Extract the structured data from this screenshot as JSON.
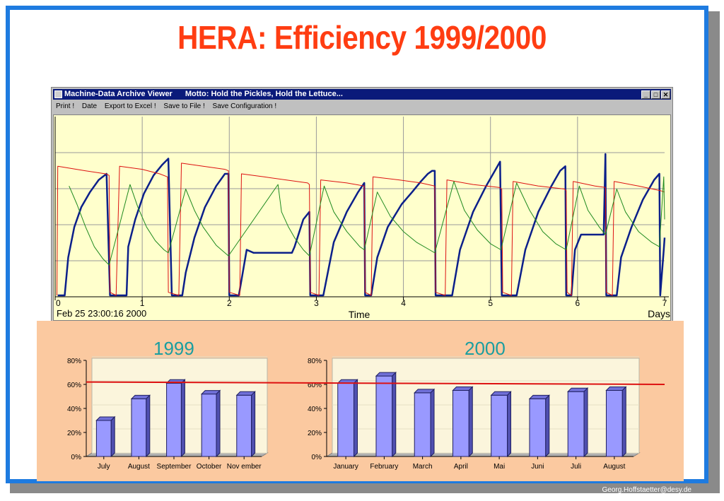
{
  "title": "HERA: Efficiency 1999/2000",
  "window": {
    "title": "Machine-Data Archive Viewer",
    "motto": "Motto: Hold the Pickles, Hold the Lettuce...",
    "buttons": [
      "_",
      "□",
      "✕"
    ],
    "menu": [
      "Print !",
      "Date",
      "Export to Excel !",
      "Save to File !",
      "Save Configuration !"
    ]
  },
  "colors": {
    "frame": "#1e7be0",
    "title": "#ff3d12",
    "panel_bg": "#fbc9a0",
    "bar_fill": "#9999ff",
    "target_line": "#dd1111",
    "year_title": "#1a9ea0",
    "plot_bg": "#ffffcc",
    "efficiency_curve": "#0b1f8a",
    "current_red": "#dd1111",
    "current_green": "#1f8a1f"
  },
  "footer": "Georg.Hoffstaetter@desy.de",
  "chart_data": [
    {
      "type": "line",
      "xlabel": "Time",
      "x_unit": "Days",
      "start_label": "Feb 25 23:00:16 2000",
      "xlim": [
        0,
        7
      ],
      "xticks": [
        "0",
        "1",
        "2",
        "3",
        "4",
        "5",
        "6",
        "7"
      ],
      "grid": true,
      "series": [
        {
          "color": "#0b1f8a",
          "points": [
            [
              0.03,
              0.0
            ],
            [
              0.05,
              0.0
            ],
            [
              0.11,
              0.0
            ],
            [
              0.15,
              0.25
            ],
            [
              0.22,
              0.45
            ],
            [
              0.3,
              0.58
            ],
            [
              0.4,
              0.68
            ],
            [
              0.5,
              0.76
            ],
            [
              0.59,
              0.8
            ],
            [
              0.63,
              0.0
            ],
            [
              0.72,
              0.0
            ],
            [
              0.76,
              0.0
            ],
            [
              0.82,
              0.0
            ],
            [
              0.84,
              0.32
            ],
            [
              0.92,
              0.5
            ],
            [
              1.02,
              0.67
            ],
            [
              1.13,
              0.79
            ],
            [
              1.23,
              0.86
            ],
            [
              1.3,
              0.9
            ],
            [
              1.34,
              0.0
            ],
            [
              1.46,
              0.0
            ],
            [
              1.5,
              0.15
            ],
            [
              1.6,
              0.38
            ],
            [
              1.72,
              0.58
            ],
            [
              1.85,
              0.72
            ],
            [
              1.95,
              0.8
            ],
            [
              1.99,
              0.8
            ],
            [
              2.0,
              0.0
            ],
            [
              2.11,
              0.0
            ],
            [
              2.2,
              0.3
            ],
            [
              2.28,
              0.28
            ],
            [
              2.34,
              0.28
            ],
            [
              2.45,
              0.28
            ],
            [
              2.65,
              0.28
            ],
            [
              2.72,
              0.28
            ],
            [
              2.75,
              0.32
            ],
            [
              2.85,
              0.5
            ],
            [
              2.92,
              0.55
            ],
            [
              2.93,
              0.0
            ],
            [
              3.02,
              0.0
            ],
            [
              3.08,
              0.0
            ],
            [
              3.2,
              0.35
            ],
            [
              3.35,
              0.55
            ],
            [
              3.48,
              0.68
            ],
            [
              3.55,
              0.74
            ],
            [
              3.56,
              0.0
            ],
            [
              3.63,
              0.0
            ],
            [
              3.7,
              0.25
            ],
            [
              3.82,
              0.45
            ],
            [
              3.98,
              0.6
            ],
            [
              4.1,
              0.68
            ],
            [
              4.2,
              0.75
            ],
            [
              4.28,
              0.8
            ],
            [
              4.33,
              0.82
            ],
            [
              4.36,
              0.82
            ],
            [
              4.37,
              0.0
            ],
            [
              4.5,
              0.0
            ],
            [
              4.56,
              0.0
            ],
            [
              4.65,
              0.3
            ],
            [
              4.8,
              0.55
            ],
            [
              4.95,
              0.72
            ],
            [
              5.05,
              0.82
            ],
            [
              5.11,
              0.88
            ],
            [
              5.13,
              0.0
            ],
            [
              5.22,
              0.0
            ],
            [
              5.3,
              0.0
            ],
            [
              5.4,
              0.3
            ],
            [
              5.55,
              0.55
            ],
            [
              5.7,
              0.72
            ],
            [
              5.8,
              0.82
            ],
            [
              5.86,
              0.85
            ],
            [
              5.87,
              0.0
            ],
            [
              5.93,
              0.0
            ],
            [
              5.97,
              0.3
            ],
            [
              6.04,
              0.4
            ],
            [
              6.2,
              0.4
            ],
            [
              6.3,
              0.4
            ],
            [
              6.32,
              0.93
            ],
            [
              6.33,
              0.0
            ],
            [
              6.4,
              0.0
            ],
            [
              6.45,
              0.0
            ],
            [
              6.5,
              0.25
            ],
            [
              6.62,
              0.45
            ],
            [
              6.75,
              0.63
            ],
            [
              6.88,
              0.76
            ],
            [
              6.94,
              0.8
            ],
            [
              6.95,
              0.0
            ],
            [
              6.99,
              0.3
            ],
            [
              7.0,
              0.38
            ]
          ]
        },
        {
          "color": "#dd1111",
          "points": [
            [
              0.02,
              0.0
            ],
            [
              0.03,
              0.85
            ],
            [
              0.35,
              0.82
            ],
            [
              0.58,
              0.8
            ],
            [
              0.62,
              0.79
            ],
            [
              0.63,
              0.02
            ],
            [
              0.7,
              0.0
            ],
            [
              0.74,
              0.85
            ],
            [
              1.0,
              0.83
            ],
            [
              1.2,
              0.8
            ],
            [
              1.29,
              0.78
            ],
            [
              1.3,
              0.02
            ],
            [
              1.42,
              0.0
            ],
            [
              1.45,
              0.87
            ],
            [
              1.7,
              0.85
            ],
            [
              1.95,
              0.83
            ],
            [
              1.99,
              0.82
            ],
            [
              2.0,
              0.02
            ],
            [
              2.12,
              0.0
            ],
            [
              2.14,
              0.8
            ],
            [
              2.4,
              0.78
            ],
            [
              2.65,
              0.76
            ],
            [
              2.9,
              0.74
            ],
            [
              2.92,
              0.73
            ],
            [
              2.93,
              0.02
            ],
            [
              3.03,
              0.0
            ],
            [
              3.05,
              0.76
            ],
            [
              3.35,
              0.74
            ],
            [
              3.55,
              0.72
            ],
            [
              3.56,
              0.02
            ],
            [
              3.63,
              0.0
            ],
            [
              3.65,
              0.78
            ],
            [
              3.95,
              0.76
            ],
            [
              4.2,
              0.74
            ],
            [
              4.36,
              0.72
            ],
            [
              4.37,
              0.02
            ],
            [
              4.48,
              0.0
            ],
            [
              4.5,
              0.76
            ],
            [
              4.8,
              0.73
            ],
            [
              5.1,
              0.71
            ],
            [
              5.13,
              0.7
            ],
            [
              5.14,
              0.02
            ],
            [
              5.24,
              0.0
            ],
            [
              5.26,
              0.75
            ],
            [
              5.55,
              0.72
            ],
            [
              5.85,
              0.7
            ],
            [
              5.87,
              0.69
            ],
            [
              5.88,
              0.02
            ],
            [
              5.93,
              0.0
            ],
            [
              5.95,
              0.75
            ],
            [
              6.2,
              0.72
            ],
            [
              6.32,
              0.71
            ],
            [
              6.33,
              0.02
            ],
            [
              6.4,
              0.0
            ],
            [
              6.42,
              0.75
            ],
            [
              6.7,
              0.72
            ],
            [
              6.95,
              0.69
            ],
            [
              7.0,
              0.68
            ]
          ]
        },
        {
          "color": "#1f8a1f",
          "points": [
            [
              0.16,
              0.72
            ],
            [
              0.25,
              0.6
            ],
            [
              0.35,
              0.45
            ],
            [
              0.45,
              0.32
            ],
            [
              0.55,
              0.24
            ],
            [
              0.62,
              0.2
            ],
            [
              0.86,
              0.73
            ],
            [
              0.95,
              0.58
            ],
            [
              1.05,
              0.45
            ],
            [
              1.15,
              0.36
            ],
            [
              1.25,
              0.3
            ],
            [
              1.3,
              0.28
            ],
            [
              1.5,
              0.7
            ],
            [
              1.6,
              0.56
            ],
            [
              1.7,
              0.45
            ],
            [
              1.85,
              0.33
            ],
            [
              1.99,
              0.26
            ],
            [
              2.56,
              0.73
            ],
            [
              2.6,
              0.55
            ],
            [
              2.68,
              0.45
            ],
            [
              2.75,
              0.38
            ],
            [
              2.85,
              0.3
            ],
            [
              2.92,
              0.26
            ],
            [
              3.09,
              0.72
            ],
            [
              3.2,
              0.55
            ],
            [
              3.35,
              0.42
            ],
            [
              3.5,
              0.32
            ],
            [
              3.55,
              0.3
            ],
            [
              3.7,
              0.68
            ],
            [
              3.85,
              0.52
            ],
            [
              4.0,
              0.42
            ],
            [
              4.15,
              0.35
            ],
            [
              4.3,
              0.3
            ],
            [
              4.36,
              0.28
            ],
            [
              4.58,
              0.75
            ],
            [
              4.7,
              0.56
            ],
            [
              4.85,
              0.43
            ],
            [
              5.0,
              0.34
            ],
            [
              5.12,
              0.3
            ],
            [
              5.3,
              0.74
            ],
            [
              5.45,
              0.56
            ],
            [
              5.6,
              0.42
            ],
            [
              5.75,
              0.34
            ],
            [
              5.87,
              0.3
            ],
            [
              6.02,
              0.72
            ],
            [
              6.12,
              0.56
            ],
            [
              6.25,
              0.45
            ],
            [
              6.32,
              0.4
            ],
            [
              6.45,
              0.7
            ],
            [
              6.55,
              0.55
            ],
            [
              6.7,
              0.42
            ],
            [
              6.85,
              0.35
            ],
            [
              6.94,
              0.32
            ],
            [
              6.99,
              0.78
            ],
            [
              7.0,
              0.5
            ]
          ]
        }
      ]
    },
    {
      "type": "bar",
      "title": "1999",
      "categories": [
        "July",
        "August",
        "September",
        "October",
        "Nov ember"
      ],
      "values": [
        30,
        48,
        61,
        52,
        51
      ],
      "ylim": [
        0,
        80
      ],
      "yticks": [
        "0%",
        "20%",
        "40%",
        "60%",
        "80%"
      ],
      "target_line": 62
    },
    {
      "type": "bar",
      "title": "2000",
      "categories": [
        "January",
        "February",
        "March",
        "April",
        "Mai",
        "Juni",
        "Juli",
        "August"
      ],
      "values": [
        61,
        67,
        53,
        55,
        51,
        48,
        54,
        55
      ],
      "ylim": [
        0,
        80
      ],
      "yticks": [
        "0%",
        "20%",
        "40%",
        "60%",
        "80%"
      ],
      "target_line": 60
    }
  ]
}
